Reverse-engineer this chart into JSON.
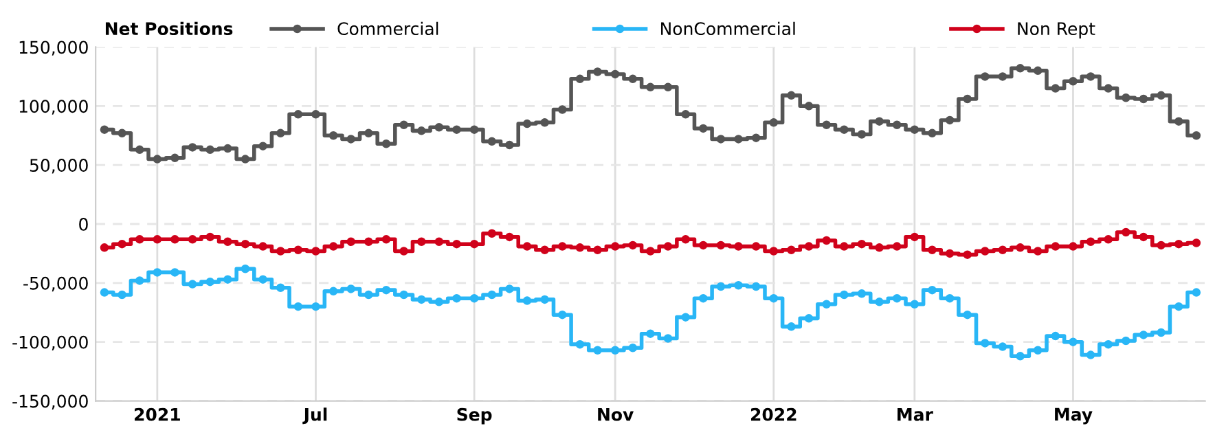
{
  "chart_data": {
    "type": "step",
    "legend_title": "Net Positions",
    "legend": "top",
    "grid": true,
    "marker": "circle",
    "line_style": "solid",
    "categories": [
      null,
      null,
      null,
      "2021",
      null,
      null,
      null,
      null,
      null,
      null,
      null,
      null,
      "Jul",
      null,
      null,
      null,
      null,
      null,
      null,
      null,
      null,
      "Sep",
      null,
      null,
      null,
      null,
      null,
      null,
      null,
      "Nov",
      null,
      null,
      null,
      null,
      null,
      null,
      null,
      null,
      "2022",
      null,
      null,
      null,
      null,
      null,
      null,
      null,
      "Mar",
      null,
      null,
      null,
      null,
      null,
      null,
      null,
      null,
      "May",
      null,
      null,
      null,
      null,
      null,
      null,
      null
    ],
    "ylim": [
      -150000,
      150000
    ],
    "yticks": [
      {
        "value": -150000,
        "label": "-150,000"
      },
      {
        "value": -100000,
        "label": "-100,000"
      },
      {
        "value": -50000,
        "label": "-50,000"
      },
      0,
      {
        "value": 50000,
        "label": "50,000"
      },
      {
        "value": 100000,
        "label": "100,000"
      },
      {
        "value": 150000,
        "label": "150,000"
      }
    ],
    "series": [
      {
        "name": "Commercial",
        "color": "#555555",
        "values": [
          80000,
          77000,
          63000,
          55000,
          56000,
          65000,
          63000,
          64000,
          55000,
          66000,
          77000,
          93000,
          93000,
          75000,
          72000,
          77000,
          68000,
          84000,
          79000,
          82000,
          80000,
          80000,
          70000,
          67000,
          85000,
          86000,
          97000,
          123000,
          129000,
          127000,
          123000,
          116000,
          116000,
          93000,
          81000,
          72000,
          72000,
          73000,
          86000,
          109000,
          100000,
          84000,
          80000,
          76000,
          87000,
          84000,
          80000,
          77000,
          88000,
          106000,
          125000,
          125000,
          132000,
          130000,
          115000,
          121000,
          125000,
          115000,
          107000,
          106000,
          109000,
          87000,
          75000
        ]
      },
      {
        "name": "NonCommercial",
        "color": "#29b6f6",
        "values": [
          -58000,
          -60000,
          -48000,
          -41000,
          -41000,
          -51000,
          -49000,
          -47000,
          -38000,
          -47000,
          -54000,
          -70000,
          -70000,
          -57000,
          -55000,
          -60000,
          -56000,
          -60000,
          -64000,
          -66000,
          -63000,
          -63000,
          -60000,
          -55000,
          -65000,
          -64000,
          -77000,
          -102000,
          -107000,
          -107000,
          -105000,
          -93000,
          -97000,
          -79000,
          -63000,
          -53000,
          -52000,
          -53000,
          -63000,
          -87000,
          -80000,
          -68000,
          -60000,
          -59000,
          -66000,
          -63000,
          -68000,
          -56000,
          -63000,
          -77000,
          -101000,
          -104000,
          -112000,
          -107000,
          -95000,
          -100000,
          -111000,
          -102000,
          -99000,
          -94000,
          -92000,
          -70000,
          -58000
        ]
      },
      {
        "name": "Non Rept",
        "color": "#d0021b",
        "values": [
          -20000,
          -17000,
          -13000,
          -13000,
          -13000,
          -13000,
          -11000,
          -15000,
          -17000,
          -19000,
          -23000,
          -22000,
          -23000,
          -19000,
          -15000,
          -15000,
          -13000,
          -23000,
          -15000,
          -15000,
          -17000,
          -17000,
          -8000,
          -11000,
          -19000,
          -22000,
          -19000,
          -20000,
          -22000,
          -19000,
          -18000,
          -23000,
          -19000,
          -13000,
          -18000,
          -18000,
          -19000,
          -19000,
          -23000,
          -22000,
          -19000,
          -14000,
          -19000,
          -17000,
          -20000,
          -19000,
          -11000,
          -22000,
          -25000,
          -26000,
          -23000,
          -22000,
          -20000,
          -23000,
          -19000,
          -19000,
          -15000,
          -13000,
          -7000,
          -11000,
          -18000,
          -17000,
          -16000
        ]
      }
    ]
  }
}
